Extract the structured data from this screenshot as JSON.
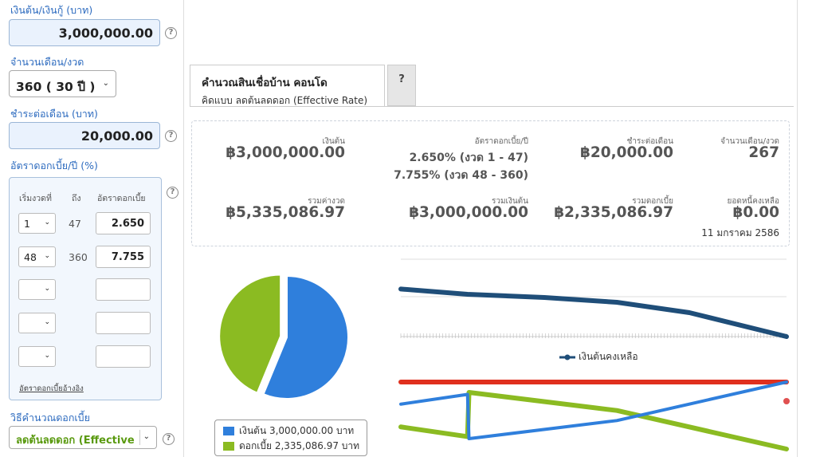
{
  "sidebar": {
    "principal_label": "เงินต้น/เงินกู้ (บาท)",
    "principal_value": "3,000,000.00",
    "months_label": "จำนวนเดือน/งวด",
    "months_value": "360 ( 30 ปี )",
    "payment_label": "ชำระต่อเดือน (บาท)",
    "payment_value": "20,000.00",
    "rate_label": "อัตราดอกเบี้ย/ปี (%)",
    "rate_table": {
      "headers": [
        "เริ่มงวดที่",
        "ถึง",
        "อัตราดอกเบี้ย"
      ],
      "rows": [
        {
          "start": "1",
          "end": "47",
          "rate": "2.650"
        },
        {
          "start": "48",
          "end": "360",
          "rate": "7.755"
        },
        {
          "start": "",
          "end": "",
          "rate": ""
        },
        {
          "start": "",
          "end": "",
          "rate": ""
        },
        {
          "start": "",
          "end": "",
          "rate": ""
        }
      ],
      "reference_link": "อัตราดอกเบี้ยอ้างอิง"
    },
    "method_label": "วิธีคำนวณดอกเบี้ย",
    "method_value": "ลดต้นลดดอก (Effective",
    "help_glyph": "?"
  },
  "tabs": [
    {
      "title": "คำนวณสินเชื่อบ้าน คอนโด",
      "subtitle": "คิดแบบ ลดต้นลดดอก (Effective Rate)"
    },
    {
      "title": "?"
    }
  ],
  "summary": {
    "principal_label": "เงินต้น",
    "principal_value": "฿3,000,000.00",
    "rate_label": "อัตราดอกเบี้ย/ปี",
    "rate_line1": "2.650% (งวด 1 - 47)",
    "rate_line2": "7.755% (งวด 48 - 360)",
    "payment_label": "ชำระต่อเดือน",
    "payment_value": "฿20,000.00",
    "count_label": "จำนวนเดือน/งวด",
    "count_value": "267",
    "total_label": "รวมค่างวด",
    "total_value": "฿5,335,086.97",
    "total_principal_label": "รวมเงินต้น",
    "total_principal_value": "฿3,000,000.00",
    "total_interest_label": "รวมดอกเบี้ย",
    "total_interest_value": "฿2,335,086.97",
    "balance_label": "ยอดหนี้คงเหลือ",
    "balance_value": "฿0.00",
    "end_date": "11 มกราคม 2586"
  },
  "colors": {
    "principal": "#2f7fdc",
    "interest": "#8bbb22",
    "balance": "#1f4e79",
    "payment": "#e0301e",
    "accent": "#2d6bbf"
  },
  "chart_data": [
    {
      "type": "pie",
      "labels": [
        "เงินต้น 3,000,000.00 บาท",
        "ดอกเบี้ย 2,335,086.97 บาท"
      ],
      "values": [
        3000000.0,
        2335086.97
      ]
    },
    {
      "type": "line",
      "legend": [
        "เงินต้นคงเหลือ"
      ],
      "series": [
        {
          "name": "เงินต้นคงเหลือ",
          "x": [
            1,
            47,
            100,
            150,
            200,
            267
          ],
          "values": [
            2980000,
            2650000,
            2450000,
            2150000,
            1500000,
            0
          ]
        }
      ]
    },
    {
      "type": "line",
      "series": [
        {
          "name": "",
          "x": [
            1,
            267
          ],
          "values": [
            20000,
            20000
          ]
        },
        {
          "x": [
            1,
            47,
            48,
            150,
            267
          ],
          "values": [
            13400,
            16300,
            3100,
            8500,
            20000
          ]
        },
        {
          "x": [
            1,
            47,
            48,
            150,
            267
          ],
          "values": [
            6600,
            3700,
            16900,
            11500,
            0
          ]
        }
      ]
    }
  ]
}
